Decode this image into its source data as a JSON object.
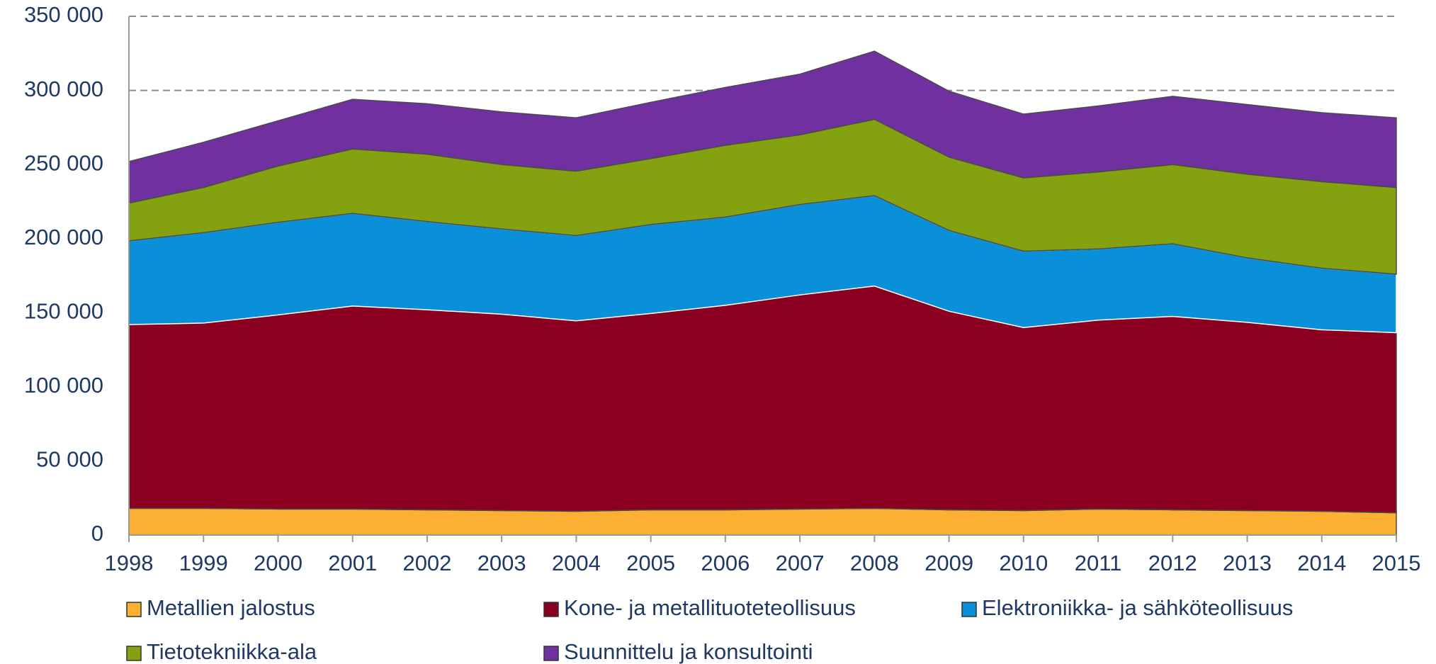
{
  "chart_data": {
    "type": "stacked-area",
    "categories": [
      "1998",
      "1999",
      "2000",
      "2001",
      "2002",
      "2003",
      "2004",
      "2005",
      "2006",
      "2007",
      "2008",
      "2009",
      "2010",
      "2011",
      "2012",
      "2013",
      "2014",
      "2015"
    ],
    "series": [
      {
        "name": "Metallien jalostus",
        "color": "#fbb034",
        "values": [
          18000,
          18000,
          17500,
          17500,
          17000,
          16500,
          16000,
          17000,
          17000,
          17500,
          18000,
          17000,
          16500,
          17500,
          17000,
          16500,
          16000,
          15000
        ]
      },
      {
        "name": "Kone- ja metallituoteteollisuus",
        "color": "#8b0020",
        "values": [
          124000,
          125000,
          131000,
          137000,
          135000,
          132500,
          128500,
          132500,
          138000,
          144500,
          150000,
          134000,
          123500,
          127500,
          130500,
          127000,
          122500,
          121500
        ]
      },
      {
        "name": "Elektroniikka- ja sähköteollisuus",
        "color": "#0a8fd9",
        "values": [
          56500,
          61000,
          62500,
          62500,
          59500,
          57500,
          57500,
          60000,
          59500,
          61000,
          61000,
          54500,
          51500,
          48000,
          49000,
          43500,
          41500,
          39500
        ]
      },
      {
        "name": "Tietotekniikka-ala",
        "color": "#84a10f",
        "values": [
          25500,
          30500,
          38000,
          43500,
          45500,
          43500,
          43500,
          44500,
          48500,
          47000,
          51500,
          49500,
          49500,
          52000,
          53500,
          56500,
          58500,
          58500
        ]
      },
      {
        "name": "Suunnittelu ja konsultointi",
        "color": "#7030a0",
        "values": [
          28000,
          30500,
          30500,
          33500,
          34000,
          35500,
          36000,
          38000,
          39000,
          41000,
          46000,
          44500,
          43000,
          44500,
          46000,
          47000,
          46500,
          47000
        ]
      }
    ],
    "ylim": [
      0,
      350000
    ],
    "yticks": [
      0,
      {
        "value": 50000,
        "label": "50 000"
      },
      {
        "value": 100000,
        "label": "100 000"
      },
      {
        "value": 150000,
        "label": "150 000"
      },
      {
        "value": 200000,
        "label": "200 000"
      },
      {
        "value": 250000,
        "label": "250 000"
      },
      {
        "value": 300000,
        "label": "300 000"
      },
      {
        "value": 350000,
        "label": "350 000"
      }
    ],
    "grid": true
  }
}
